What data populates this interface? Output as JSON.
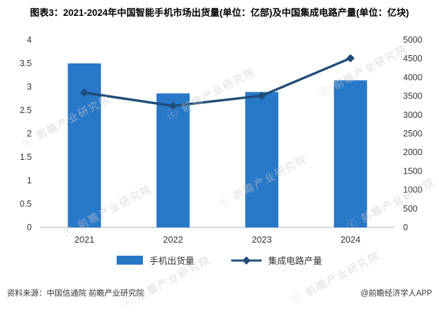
{
  "header": {
    "title": "图表3：2021-2024年中国智能手机市场出货量(单位：亿部)及中国集成电路产量(单位：亿块)"
  },
  "watermark": {
    "symbol": "ⓒ",
    "text": "前瞻产业研究院"
  },
  "chart_data": {
    "type": "bar+line",
    "title": "图表3：2021-2024年中国智能手机市场出货量(单位：亿部)及中国集成电路产量(单位：亿块)",
    "categories": [
      "2021",
      "2022",
      "2023",
      "2024"
    ],
    "series": [
      {
        "name": "手机出货量",
        "type": "bar",
        "axis": "left",
        "values": [
          3.5,
          2.86,
          2.89,
          3.14
        ],
        "color": "#2878C8"
      },
      {
        "name": "集成电路产量",
        "type": "line",
        "axis": "right",
        "values": [
          3594,
          3242,
          3514,
          4514
        ],
        "color": "#1F4E79"
      }
    ],
    "left_axis": {
      "min": 0,
      "max": 4,
      "step": 0.5
    },
    "right_axis": {
      "min": 0,
      "max": 5000,
      "step": 500
    },
    "grid": false,
    "legend_position": "bottom"
  },
  "footer": {
    "source": "资料来源：中国信通院 前瞻产业研究院",
    "brand": "@前瞻经济学人APP"
  }
}
